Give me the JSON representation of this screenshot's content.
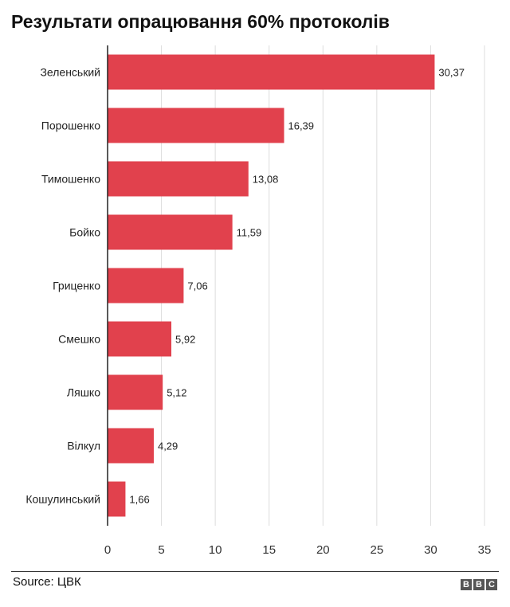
{
  "chart_data": {
    "type": "bar",
    "orientation": "horizontal",
    "title": "Результати опрацювання 60% протоколів",
    "categories": [
      "Зеленський",
      "Порошенко",
      "Тимошенко",
      "Бойко",
      "Гриценко",
      "Смешко",
      "Ляшко",
      "Вілкул",
      "Кошулинський"
    ],
    "values": [
      30.37,
      16.39,
      13.08,
      11.59,
      7.06,
      5.92,
      5.12,
      4.29,
      1.66
    ],
    "value_labels": [
      "30,37",
      "16,39",
      "13,08",
      "11,59",
      "7,06",
      "5,92",
      "5,12",
      "4,29",
      "1,66"
    ],
    "xlim": [
      0,
      35
    ],
    "xticks": [
      0,
      5,
      10,
      15,
      20,
      25,
      30,
      35
    ],
    "grid": true,
    "bar_color": "#e1414d"
  },
  "footer": {
    "source": "Source: ЦВК",
    "logo": [
      "B",
      "B",
      "C"
    ]
  }
}
